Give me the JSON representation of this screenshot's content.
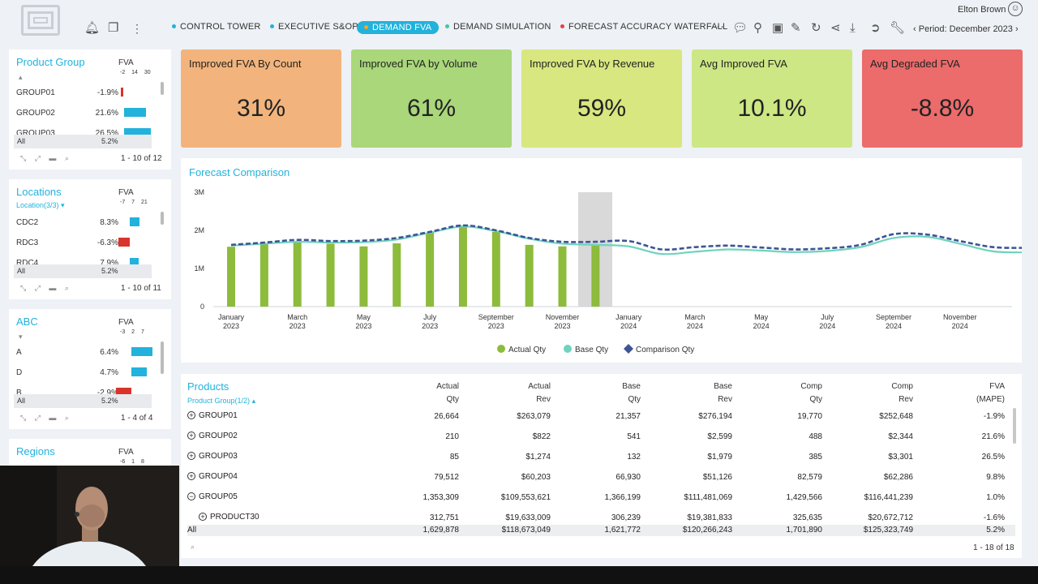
{
  "header": {
    "nav": [
      {
        "label": "CONTROL TOWER",
        "dot": "#22b2dc"
      },
      {
        "label": "EXECUTIVE S&OP",
        "dot": "#22b2dc"
      },
      {
        "label": "DEMAND FVA",
        "dot": "#f5a623",
        "active": true
      },
      {
        "label": "DEMAND SIMULATION",
        "dot": "#3dc9a5"
      },
      {
        "label": "FORECAST ACCURACY WATERFALL",
        "dot": "#e04545"
      }
    ],
    "more": "···",
    "user": "Elton Brown",
    "period": "Period: December 2023"
  },
  "filters": [
    {
      "title": "Product Group",
      "subtitle": "",
      "fva": "FVA",
      "scale": "-2 14 30",
      "rows": [
        {
          "name": "GROUP01",
          "value": "-1.9%",
          "v": -1.9
        },
        {
          "name": "GROUP02",
          "value": "21.6%",
          "v": 21.6
        },
        {
          "name": "GROUP03",
          "value": "26.5%",
          "v": 26.5
        }
      ],
      "all": "All",
      "all_value": "5.2%",
      "pagination": "1 - 10 of 12"
    },
    {
      "title": "Locations",
      "subtitle": "Location(3/3)",
      "fva": "FVA",
      "scale": "-7 7 21",
      "rows": [
        {
          "name": "CDC2",
          "value": "8.3%",
          "v": 8.3
        },
        {
          "name": "RDC3",
          "value": "-6.3%",
          "v": -6.3
        },
        {
          "name": "RDC4",
          "value": "7.9%",
          "v": 7.9
        }
      ],
      "all": "All",
      "all_value": "5.2%",
      "pagination": "1 - 10 of 11"
    },
    {
      "title": "ABC",
      "subtitle": "",
      "fva": "FVA",
      "scale": "-3 2 7",
      "rows": [
        {
          "name": "A",
          "value": "6.4%",
          "v": 6.4
        },
        {
          "name": "D",
          "value": "4.7%",
          "v": 4.7
        },
        {
          "name": "B",
          "value": "-2.9%",
          "v": -2.9
        }
      ],
      "all": "All",
      "all_value": "5.2%",
      "pagination": "1 - 4 of 4"
    },
    {
      "title": "Regions",
      "fva": "FVA",
      "scale": "-6 1 8"
    }
  ],
  "kpis": [
    {
      "title": "Improved FVA By Count",
      "value": "31%",
      "color": "#f2b47c"
    },
    {
      "title": "Improved FVA by Volume",
      "value": "61%",
      "color": "#a9d77a"
    },
    {
      "title": "Improved FVA by Revenue",
      "value": "59%",
      "color": "#d8e77f"
    },
    {
      "title": "Avg Improved FVA",
      "value": "10.1%",
      "color": "#cde784"
    },
    {
      "title": "Avg Degraded FVA",
      "value": "-8.8%",
      "color": "#ec6b6b"
    }
  ],
  "chart_title": "Forecast Comparison",
  "chart_data": {
    "type": "bar",
    "title": "Forecast Comparison",
    "yticks": [
      "0",
      "1M",
      "2M",
      "3M"
    ],
    "ylim": [
      0,
      3000000
    ],
    "x_labels": [
      {
        "m": "January",
        "y": "2023"
      },
      {
        "m": "March",
        "y": "2023"
      },
      {
        "m": "May",
        "y": "2023"
      },
      {
        "m": "July",
        "y": "2023"
      },
      {
        "m": "September",
        "y": "2023"
      },
      {
        "m": "November",
        "y": "2023"
      },
      {
        "m": "January",
        "y": "2024"
      },
      {
        "m": "March",
        "y": "2024"
      },
      {
        "m": "May",
        "y": "2024"
      },
      {
        "m": "July",
        "y": "2024"
      },
      {
        "m": "September",
        "y": "2024"
      },
      {
        "m": "November",
        "y": "2024"
      }
    ],
    "highlight_period": "December 2023",
    "series": [
      {
        "name": "Actual Qty",
        "color": "#8dbb3c",
        "values": [
          1570000,
          1650000,
          1700000,
          1650000,
          1580000,
          1660000,
          1940000,
          2130000,
          1960000,
          1620000,
          1580000,
          1620000
        ]
      },
      {
        "name": "Base Qty",
        "color": "#6fd3bd",
        "values": [
          1600000,
          1650000,
          1700000,
          1680000,
          1690000,
          1760000,
          1940000,
          2100000,
          1980000,
          1780000,
          1650000,
          1620000,
          1580000,
          1380000,
          1440000,
          1500000,
          1470000,
          1430000,
          1460000,
          1560000,
          1800000,
          1830000,
          1650000,
          1450000,
          1420000
        ]
      },
      {
        "name": "Comparison Qty",
        "color": "#3d5595",
        "values": [
          1620000,
          1680000,
          1750000,
          1720000,
          1730000,
          1800000,
          1960000,
          2130000,
          2000000,
          1800000,
          1700000,
          1700000,
          1720000,
          1500000,
          1560000,
          1600000,
          1550000,
          1500000,
          1530000,
          1620000,
          1900000,
          1890000,
          1720000,
          1560000,
          1540000
        ]
      }
    ]
  },
  "products": {
    "title": "Products",
    "subtitle": "Product Group(1/2)",
    "columns": [
      {
        "l1": "Actual",
        "l2": "Qty"
      },
      {
        "l1": "Actual",
        "l2": "Rev"
      },
      {
        "l1": "Base",
        "l2": "Qty"
      },
      {
        "l1": "Base",
        "l2": "Rev"
      },
      {
        "l1": "Comp",
        "l2": "Qty"
      },
      {
        "l1": "Comp",
        "l2": "Rev"
      },
      {
        "l1": "FVA",
        "l2": "(MAPE)"
      }
    ],
    "rows": [
      {
        "name": "GROUP01",
        "expand": "+",
        "cells": [
          "26,664",
          "$263,079",
          "21,357",
          "$276,194",
          "19,770",
          "$252,648",
          "-1.9%"
        ]
      },
      {
        "name": "GROUP02",
        "expand": "+",
        "cells": [
          "210",
          "$822",
          "541",
          "$2,599",
          "488",
          "$2,344",
          "21.6%"
        ]
      },
      {
        "name": "GROUP03",
        "expand": "+",
        "cells": [
          "85",
          "$1,274",
          "132",
          "$1,979",
          "385",
          "$3,301",
          "26.5%"
        ]
      },
      {
        "name": "GROUP04",
        "expand": "+",
        "cells": [
          "79,512",
          "$60,203",
          "66,930",
          "$51,126",
          "82,579",
          "$62,286",
          "9.8%"
        ]
      },
      {
        "name": "GROUP05",
        "expand": "−",
        "cells": [
          "1,353,309",
          "$109,553,621",
          "1,366,199",
          "$111,481,069",
          "1,429,566",
          "$116,441,239",
          "1.0%"
        ]
      },
      {
        "name": "PRODUCT30",
        "expand": "+",
        "child": true,
        "cells": [
          "312,751",
          "$19,633,009",
          "306,239",
          "$19,381,833",
          "325,635",
          "$20,672,712",
          "-1.6%"
        ]
      }
    ],
    "all": {
      "name": "All",
      "cells": [
        "1,629,878",
        "$118,673,049",
        "1,621,772",
        "$120,266,243",
        "1,701,890",
        "$125,323,749",
        "5.2%"
      ]
    },
    "pagination": "1 - 18 of 18"
  }
}
